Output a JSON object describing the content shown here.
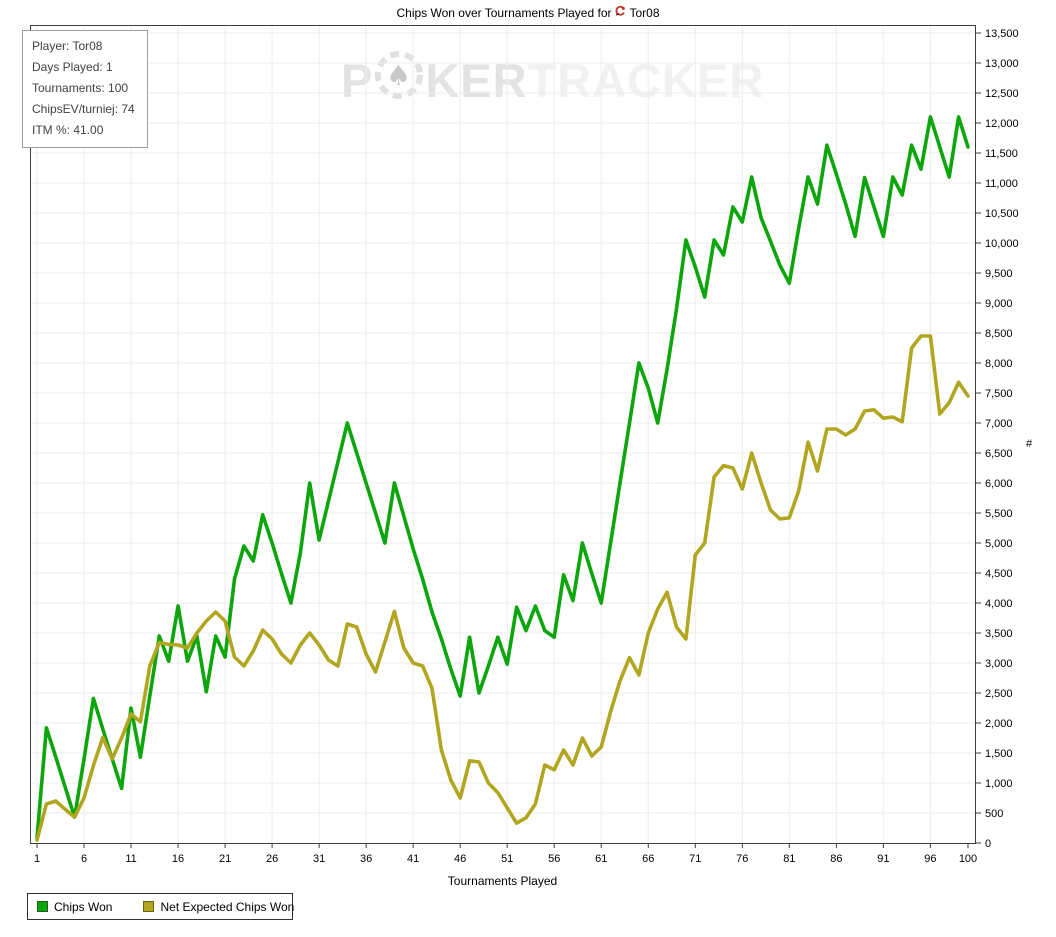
{
  "title": {
    "prefix": "Chips Won over Tournaments Played for",
    "player": "Tor08"
  },
  "info_box": {
    "lines": [
      "Player: Tor08",
      "Days Played: 1",
      "Tournaments: 100",
      "ChipsEV/turniej: 74",
      "ITM %: 41.00"
    ]
  },
  "watermark": {
    "part1": "P",
    "part2": "KER",
    "part3": "TRACKER",
    "chip_icon": "poker-chip-spade"
  },
  "axes": {
    "x_label": "Tournaments Played",
    "y_label": "#",
    "x_ticks": [
      1,
      6,
      11,
      16,
      21,
      26,
      31,
      36,
      41,
      46,
      51,
      56,
      61,
      66,
      71,
      76,
      81,
      86,
      91,
      96,
      100
    ],
    "y_min": 0,
    "y_max": 13500,
    "y_step": 500
  },
  "legend": {
    "items": [
      {
        "label": "Chips Won",
        "color": "#0ca50c",
        "border": "#1a5c1a"
      },
      {
        "label": "Net Expected Chips Won",
        "color": "#b2a51f",
        "border": "#6b6414"
      }
    ]
  },
  "colors": {
    "grid": "#ededed",
    "plot_border": "#3c3c3c",
    "tick_text": "#000000"
  },
  "chart_data": {
    "type": "line",
    "title": "Chips Won over Tournaments Played for Tor08",
    "xlabel": "Tournaments Played",
    "ylabel": "#",
    "xlim": [
      1,
      100
    ],
    "ylim": [
      0,
      13500
    ],
    "grid": true,
    "legend_position": "bottom-left",
    "x": [
      1,
      2,
      3,
      4,
      5,
      6,
      7,
      8,
      9,
      10,
      11,
      12,
      13,
      14,
      15,
      16,
      17,
      18,
      19,
      20,
      21,
      22,
      23,
      24,
      25,
      26,
      27,
      28,
      29,
      30,
      31,
      32,
      33,
      34,
      35,
      36,
      37,
      38,
      39,
      40,
      41,
      42,
      43,
      44,
      45,
      46,
      47,
      48,
      49,
      50,
      51,
      52,
      53,
      54,
      55,
      56,
      57,
      58,
      59,
      60,
      61,
      62,
      63,
      64,
      65,
      66,
      67,
      68,
      69,
      70,
      71,
      72,
      73,
      74,
      75,
      76,
      77,
      78,
      79,
      80,
      81,
      82,
      83,
      84,
      85,
      86,
      87,
      88,
      89,
      90,
      91,
      92,
      93,
      94,
      95,
      96,
      97,
      98,
      99,
      100
    ],
    "series": [
      {
        "name": "Chips Won",
        "color": "#0ca50c",
        "values": [
          80,
          1920,
          1430,
          930,
          430,
          1400,
          2410,
          1900,
          1400,
          910,
          2250,
          1430,
          2450,
          3450,
          3030,
          3950,
          3030,
          3450,
          2520,
          3450,
          3100,
          4400,
          4950,
          4700,
          5470,
          5000,
          4490,
          4000,
          4830,
          6000,
          5050,
          5700,
          6350,
          7000,
          6500,
          6000,
          5500,
          5000,
          6000,
          5450,
          4900,
          4400,
          3850,
          3400,
          2900,
          2450,
          3430,
          2500,
          2950,
          3430,
          2980,
          3930,
          3540,
          3950,
          3540,
          3430,
          4470,
          4040,
          5000,
          4490,
          4000,
          5000,
          6000,
          7000,
          8000,
          7580,
          7000,
          7900,
          8900,
          10050,
          9600,
          9100,
          10050,
          9800,
          10600,
          10350,
          11100,
          10420,
          10030,
          9630,
          9330,
          10250,
          11100,
          10650,
          11630,
          11150,
          10650,
          10110,
          11090,
          10600,
          10110,
          11100,
          10800,
          11630,
          11230,
          12100,
          11600,
          11100,
          12100,
          11600
        ]
      },
      {
        "name": "Net Expected Chips Won",
        "color": "#b2a51f",
        "values": [
          50,
          650,
          700,
          560,
          430,
          750,
          1290,
          1760,
          1400,
          1750,
          2150,
          2020,
          2950,
          3340,
          3310,
          3300,
          3250,
          3500,
          3700,
          3850,
          3700,
          3100,
          2950,
          3200,
          3550,
          3400,
          3150,
          3000,
          3300,
          3500,
          3300,
          3050,
          2950,
          3650,
          3600,
          3150,
          2850,
          3350,
          3860,
          3250,
          3000,
          2950,
          2580,
          1550,
          1050,
          750,
          1370,
          1350,
          1000,
          840,
          585,
          330,
          420,
          650,
          1300,
          1220,
          1550,
          1300,
          1750,
          1450,
          1600,
          2190,
          2700,
          3090,
          2800,
          3500,
          3900,
          4180,
          3600,
          3400,
          4800,
          5000,
          6100,
          6290,
          6250,
          5900,
          6500,
          6000,
          5550,
          5400,
          5420,
          5870,
          6680,
          6200,
          6900,
          6900,
          6800,
          6900,
          7200,
          7220,
          7080,
          7100,
          7020,
          8250,
          8450,
          8450,
          7150,
          7340,
          7680,
          7450
        ]
      }
    ]
  }
}
